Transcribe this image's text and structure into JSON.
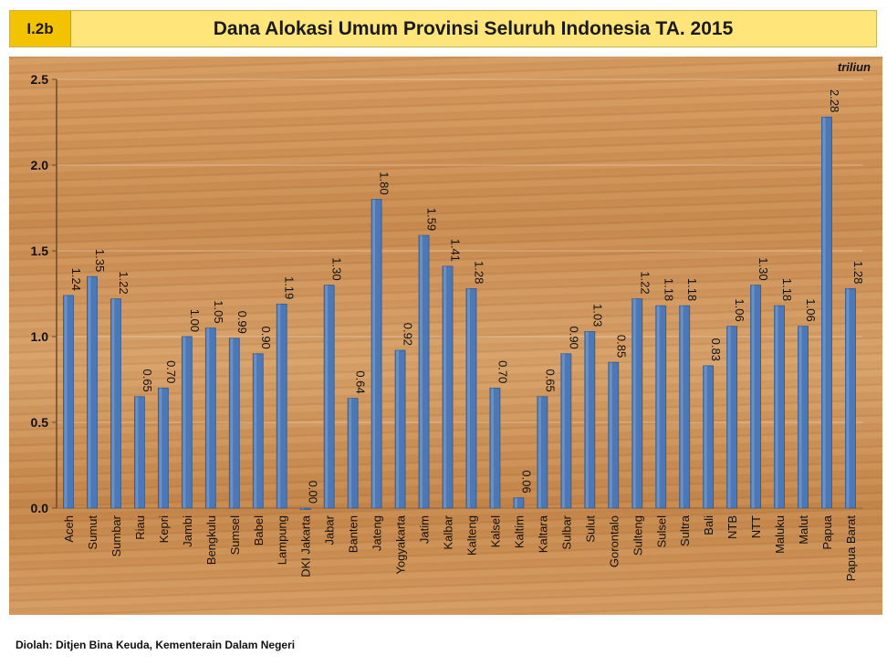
{
  "header": {
    "badge": "I.2b",
    "title": "Dana Alokasi Umum Provinsi Seluruh Indonesia TA. 2015"
  },
  "footer": {
    "source": "Diolah: Ditjen Bina Keuda, Kementerain Dalam Negeri"
  },
  "colors": {
    "bar": "#4a78b8",
    "header_bg": "#ffe57a",
    "badge_bg": "#f4c300"
  },
  "chart_data": {
    "type": "bar",
    "unit": "triliun",
    "ylim": [
      0,
      2.5
    ],
    "yticks": [
      "0.0",
      "0.5",
      "1.0",
      "1.5",
      "2.0",
      "2.5"
    ],
    "grid": true,
    "categories": [
      "Aceh",
      "Sumut",
      "Sumbar",
      "Riau",
      "Kepri",
      "Jambi",
      "Bengkulu",
      "Sumsel",
      "Babel",
      "Lampung",
      "DKI Jakarta",
      "Jabar",
      "Banten",
      "Jateng",
      "Yogyakarta",
      "Jatim",
      "Kalbar",
      "Kalteng",
      "Kalsel",
      "Kaltim",
      "Kaltara",
      "Sulbar",
      "Sulut",
      "Gorontalo",
      "Sulteng",
      "Sulsel",
      "Sultra",
      "Bali",
      "NTB",
      "NTT",
      "Maluku",
      "Malut",
      "Papua",
      "Papua Barat"
    ],
    "values": [
      1.24,
      1.35,
      1.22,
      0.65,
      0.7,
      1.0,
      1.05,
      0.99,
      0.9,
      1.19,
      0.0,
      1.3,
      0.64,
      1.8,
      0.92,
      1.59,
      1.41,
      1.28,
      0.7,
      0.06,
      0.65,
      0.9,
      1.03,
      0.85,
      1.22,
      1.18,
      1.18,
      0.83,
      1.06,
      1.3,
      1.18,
      1.06,
      2.28,
      1.28
    ],
    "value_labels": [
      "1.24",
      "1.35",
      "1.22",
      "0.65",
      "0.70",
      "1.00",
      "1.05",
      "0.99",
      "0.90",
      "1.19",
      "0.00",
      "1.30",
      "0.64",
      "1.80",
      "0.92",
      "1.59",
      "1.41",
      "1.28",
      "0.70",
      "0.06",
      "0.65",
      "0.90",
      "1.03",
      "0.85",
      "1.22",
      "1.18",
      "1.18",
      "0.83",
      "1.06",
      "1.30",
      "1.18",
      "1.06",
      "2.28",
      "1.28"
    ]
  }
}
